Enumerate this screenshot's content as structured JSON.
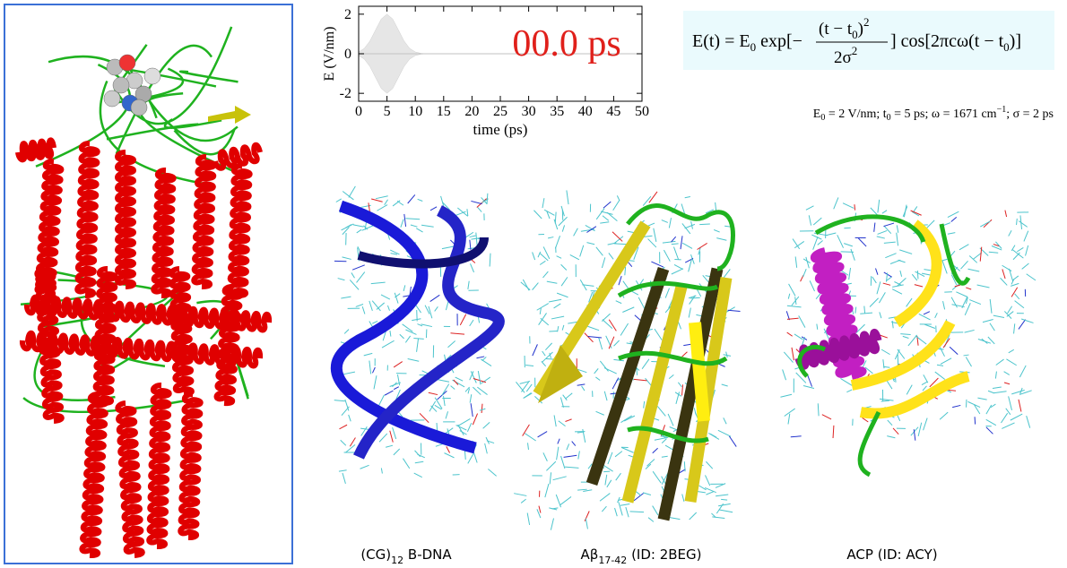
{
  "chart_data": {
    "type": "area",
    "ylabel": "E (V/nm)",
    "xlabel": "time (ps)",
    "annotation": "00.0 ps",
    "x": [
      0,
      1,
      2,
      3,
      4,
      5,
      6,
      7,
      8,
      9,
      10,
      11,
      12,
      13,
      20,
      30,
      40,
      50
    ],
    "series": [
      {
        "color": "#e6e6e6",
        "values": [
          0.09,
          0.27,
          0.65,
          1.21,
          1.76,
          2.0,
          1.76,
          1.21,
          0.65,
          0.27,
          0.09,
          0.02,
          0.0,
          0.0,
          0.0,
          0.0,
          0.0,
          0.0
        ]
      },
      {
        "color": "#e6e6e6",
        "values": [
          -0.09,
          -0.27,
          -0.65,
          -1.21,
          -1.76,
          -2.0,
          -1.76,
          -1.21,
          -0.65,
          -0.27,
          -0.09,
          -0.02,
          0.0,
          0.0,
          0.0,
          0.0,
          0.0,
          0.0
        ]
      }
    ],
    "xlim": [
      0,
      50
    ],
    "ylim": [
      -2.4,
      2.4
    ],
    "xticks": [
      0,
      5,
      10,
      15,
      20,
      25,
      30,
      35,
      40,
      45,
      50
    ],
    "yticks": [
      -2,
      0,
      2
    ]
  },
  "equation": [
    "E(t) = E",
    "0",
    " exp[−",
    "(t − t",
    "0",
    ")",
    "2",
    "2σ",
    "2",
    "] cos[2πcω(t − t",
    "0",
    ")]"
  ],
  "parameters": [
    "E",
    "0",
    " = 2 V/nm; t",
    "0",
    " = 5 ps; ω = 1671 cm",
    "−1",
    "; σ = 2 ps"
  ],
  "captions": [
    [
      "(CG)",
      "12",
      " B-DNA"
    ],
    [
      "Aβ",
      "17-42",
      " (ID: 2BEG)"
    ],
    [
      "ACP (ID: ACY)"
    ]
  ]
}
